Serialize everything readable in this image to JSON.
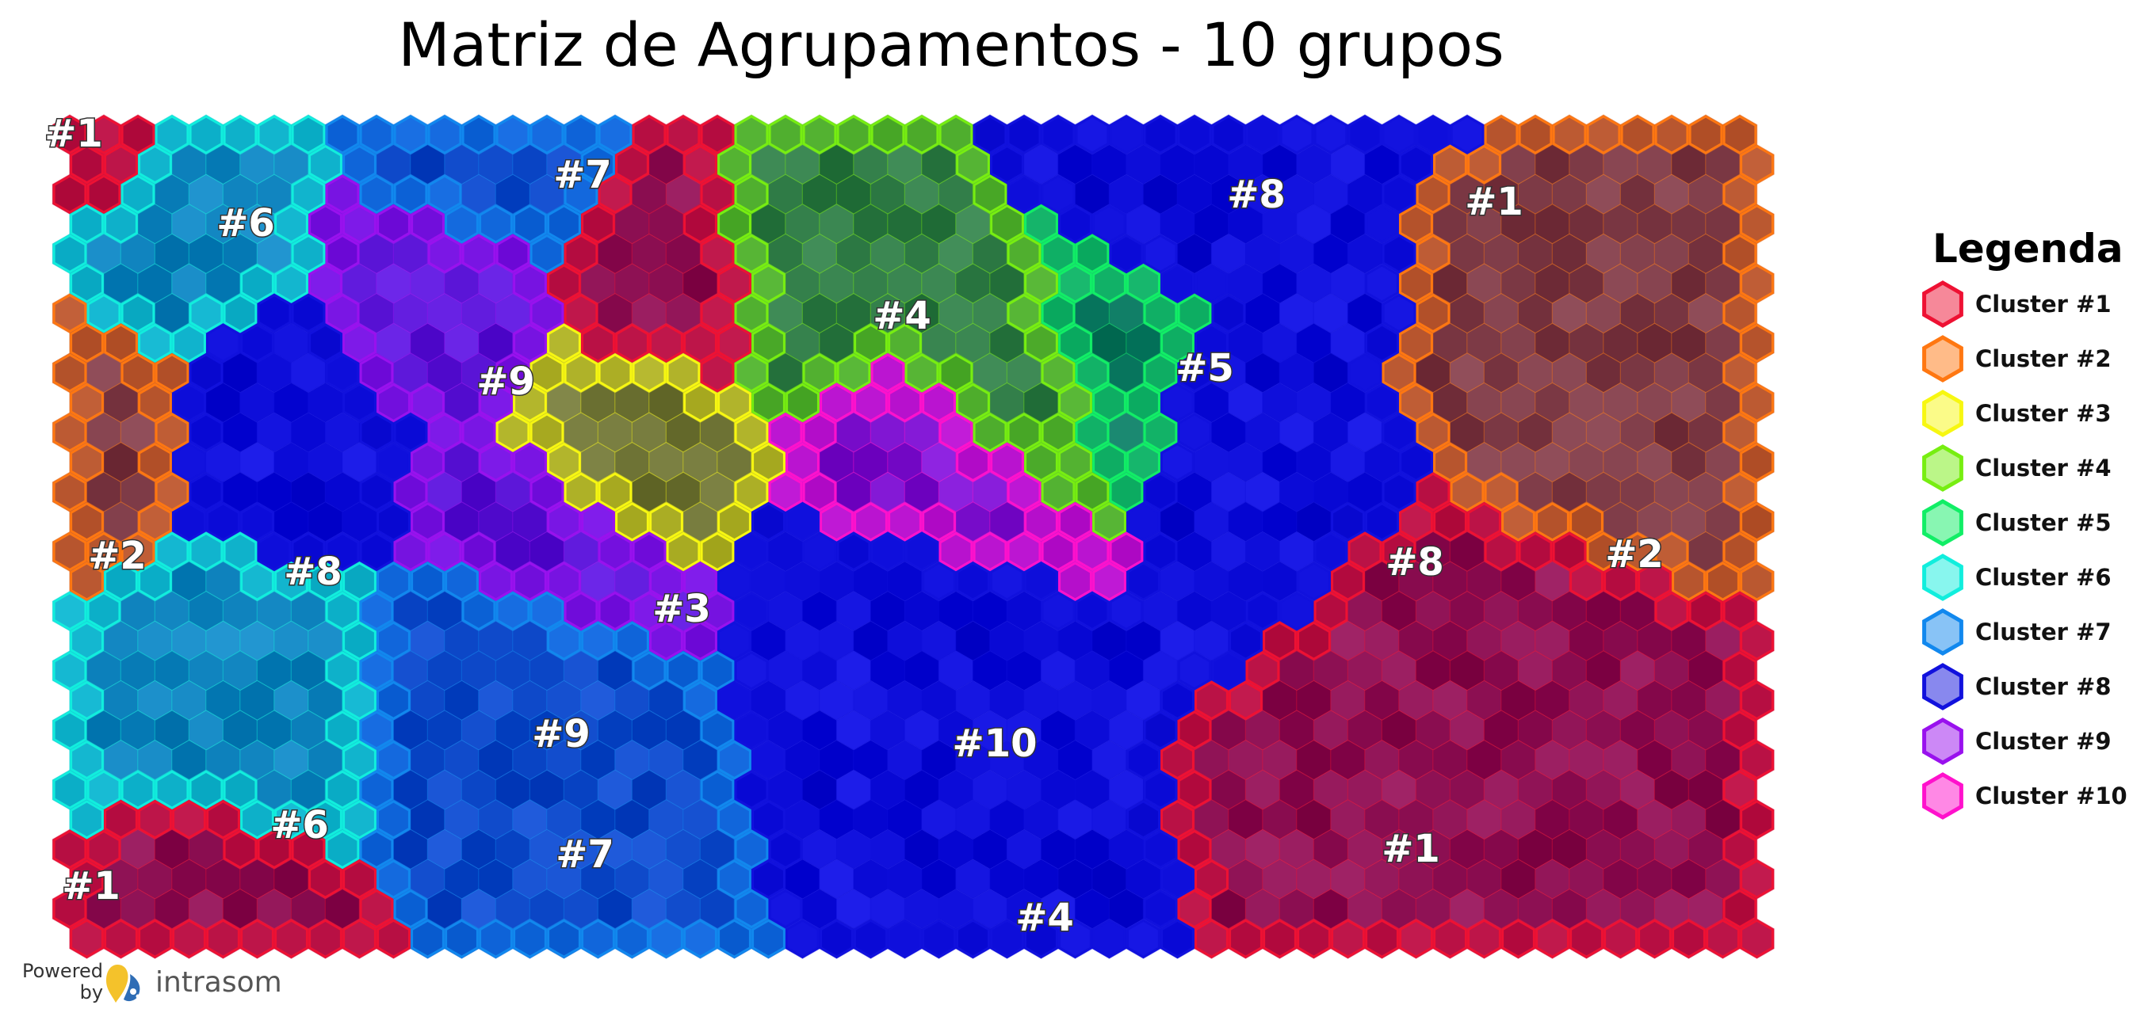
{
  "title": "Matriz de Agrupamentos - 10 grupos",
  "legend": {
    "title": "Legenda",
    "items": [
      {
        "label": "Cluster #1",
        "color": "#ee1133"
      },
      {
        "label": "Cluster #2",
        "color": "#ff7711"
      },
      {
        "label": "Cluster #3",
        "color": "#f7f711"
      },
      {
        "label": "Cluster #4",
        "color": "#77ee11"
      },
      {
        "label": "Cluster #5",
        "color": "#11ee66"
      },
      {
        "label": "Cluster #6",
        "color": "#11eedd"
      },
      {
        "label": "Cluster #7",
        "color": "#1188ee"
      },
      {
        "label": "Cluster #8",
        "color": "#1111dd"
      },
      {
        "label": "Cluster #9",
        "color": "#9911ee"
      },
      {
        "label": "Cluster #10",
        "color": "#ff11cc"
      }
    ]
  },
  "footer": {
    "powered_line1": "Powered",
    "powered_line2": "by",
    "brand": "intrasom"
  },
  "chart_data": {
    "type": "heatmap",
    "title": "Matriz de Agrupamentos - 10 grupos",
    "grid": {
      "columns": 50,
      "rows": 28,
      "cell_shape": "hexagon"
    },
    "series": [
      {
        "name": "Cluster #1",
        "region_labels": [
          "#1",
          "#1",
          "#1",
          "#1"
        ]
      },
      {
        "name": "Cluster #2",
        "region_labels": [
          "#2",
          "#2"
        ]
      },
      {
        "name": "Cluster #3",
        "region_labels": [
          "#3"
        ]
      },
      {
        "name": "Cluster #4",
        "region_labels": [
          "#4",
          "#4"
        ]
      },
      {
        "name": "Cluster #5",
        "region_labels": [
          "#5"
        ]
      },
      {
        "name": "Cluster #6",
        "region_labels": [
          "#6",
          "#6"
        ]
      },
      {
        "name": "Cluster #7",
        "region_labels": [
          "#7",
          "#7"
        ]
      },
      {
        "name": "Cluster #8",
        "region_labels": [
          "#8",
          "#8",
          "#8"
        ]
      },
      {
        "name": "Cluster #9",
        "region_labels": [
          "#9",
          "#9"
        ]
      },
      {
        "name": "Cluster #10",
        "region_labels": [
          "#10"
        ]
      }
    ],
    "legend_position": "right",
    "grid_lines": false
  }
}
